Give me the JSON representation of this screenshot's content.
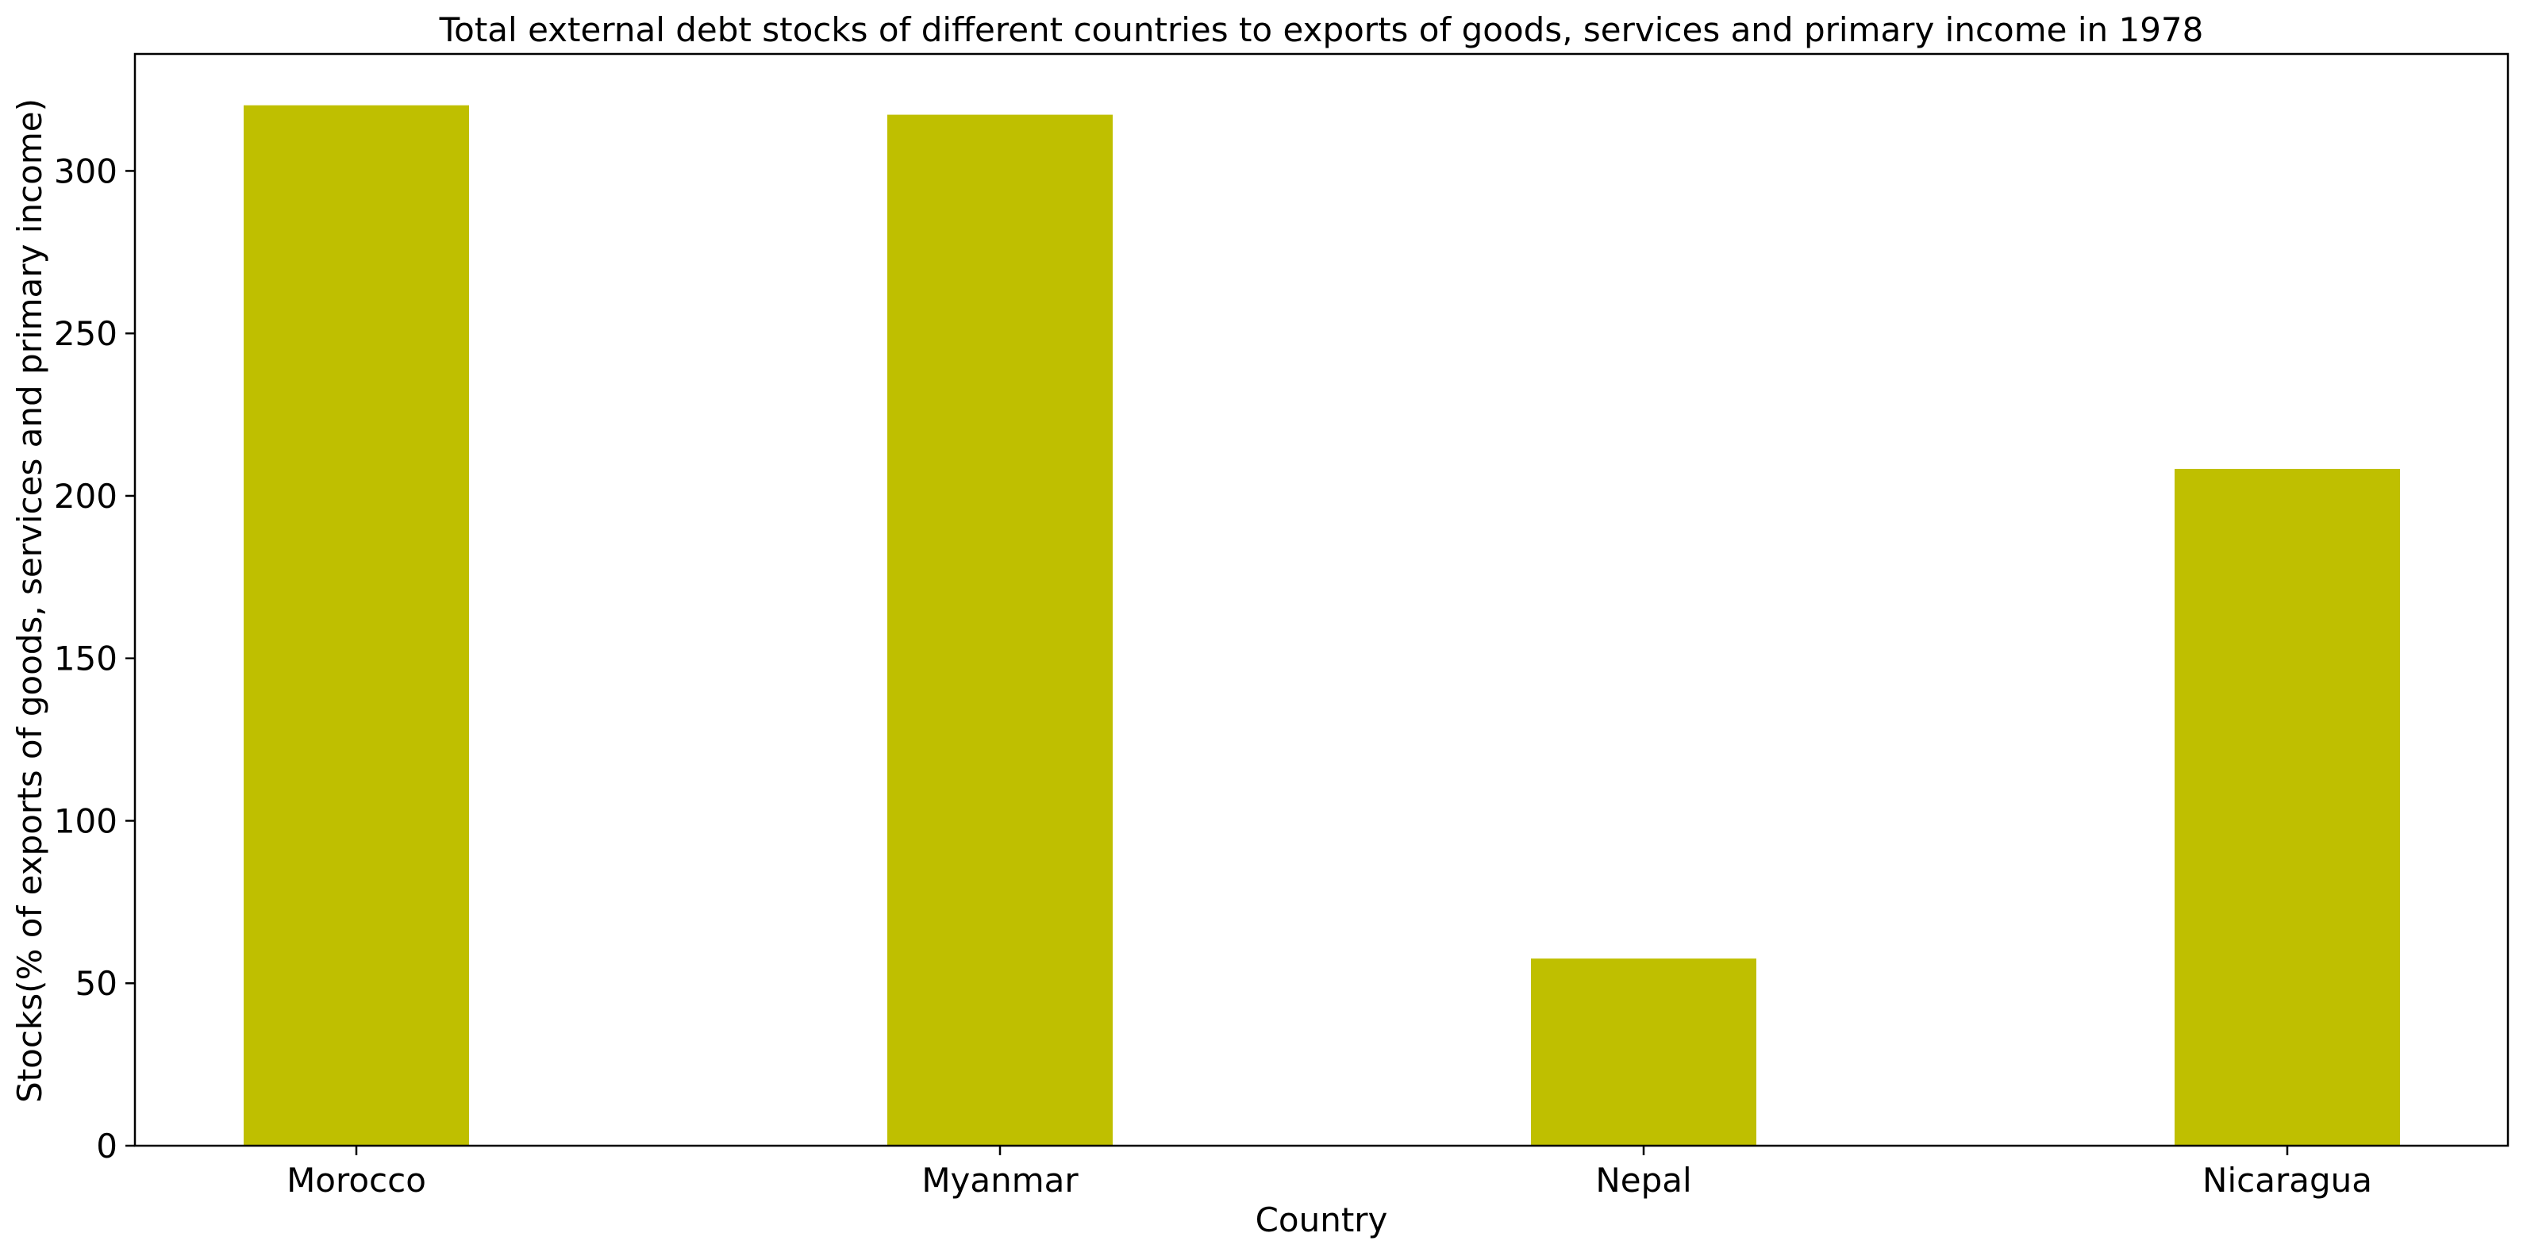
{
  "chart_data": {
    "type": "bar",
    "title": "Total external debt stocks of different countries to exports of goods, services and primary income in 1978",
    "xlabel": "Country",
    "ylabel": "Stocks(% of exports of goods, services and primary income)",
    "categories": [
      "Morocco",
      "Myanmar",
      "Nepal",
      "Nicaragua"
    ],
    "values": [
      320.2,
      317.3,
      57.6,
      208.3
    ],
    "ylim": [
      0,
      336
    ],
    "yticks": [
      0,
      50,
      100,
      150,
      200,
      250,
      300
    ],
    "bar_color": "#bfbf00",
    "grid": false,
    "legend": "none"
  }
}
